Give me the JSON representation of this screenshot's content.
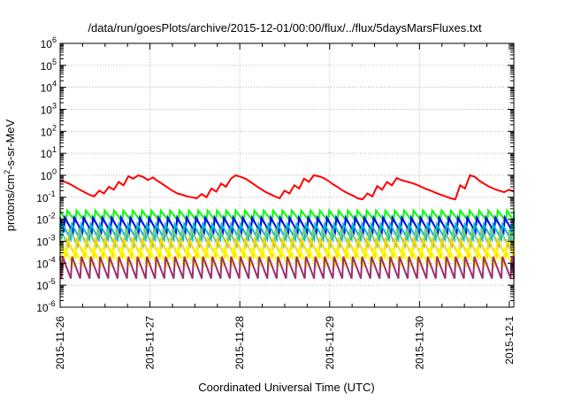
{
  "chart_data": {
    "type": "line",
    "title": "/data/run/goesPlots/archive/2015-12-01/00:00/flux/../flux/5daysMarsFluxes.txt",
    "xlabel": "Coordinated Universal Time (UTC)",
    "ylabel_main": "protons/cm",
    "ylabel_sup": "2",
    "ylabel_tail": "-s-sr-MeV",
    "y_scale": "log",
    "ylim_exponents": [
      -6,
      6
    ],
    "y_base_label": "10",
    "y_tick_exponents": [
      "-6",
      "-5",
      "-4",
      "-3",
      "-2",
      "-1",
      "0",
      "1",
      "2",
      "3",
      "4",
      "5",
      "6"
    ],
    "x_ticks": [
      "2015-11-26",
      "2015-11-27",
      "2015-11-28",
      "2015-11-29",
      "2015-11-30",
      "2015-12-1"
    ],
    "x_range_days": [
      0,
      5.05
    ],
    "grid": true,
    "legend": "none",
    "series": [
      {
        "color": "#ff0000",
        "sawtooth": false,
        "values": [
          0.55,
          0.5,
          0.4,
          0.3,
          0.22,
          0.17,
          0.13,
          0.11,
          0.2,
          0.15,
          0.3,
          0.22,
          0.5,
          0.35,
          0.9,
          0.7,
          1.0,
          0.85,
          0.6,
          0.8,
          0.55,
          0.4,
          0.28,
          0.2,
          0.15,
          0.13,
          0.11,
          0.1,
          0.09,
          0.14,
          0.1,
          0.25,
          0.18,
          0.42,
          0.3,
          0.7,
          1.0,
          0.85,
          0.7,
          0.5,
          0.35,
          0.25,
          0.18,
          0.14,
          0.11,
          0.09,
          0.2,
          0.15,
          0.35,
          0.25,
          0.7,
          0.5,
          1.0,
          0.9,
          0.75,
          0.55,
          0.38,
          0.28,
          0.2,
          0.15,
          0.12,
          0.09,
          0.08,
          0.15,
          0.11,
          0.32,
          0.22,
          0.5,
          0.35,
          0.75,
          0.6,
          0.52,
          0.45,
          0.38,
          0.3,
          0.24,
          0.2,
          0.16,
          0.13,
          0.11,
          0.09,
          0.08,
          0.35,
          0.25,
          1.0,
          0.85,
          0.55,
          0.4,
          0.3,
          0.24,
          0.2,
          0.17,
          0.22,
          0.18
        ]
      },
      {
        "color": "#00ff00",
        "sawtooth": true,
        "period_hours": 2.5,
        "peak": 0.025,
        "trough": 0.008
      },
      {
        "color": "#0000ff",
        "sawtooth": true,
        "period_hours": 2.5,
        "peak": 0.012,
        "trough": 0.0025
      },
      {
        "color": "#00c0c0",
        "sawtooth": true,
        "period_hours": 2.5,
        "peak": 0.006,
        "trough": 0.0012
      },
      {
        "color": "#7dc87d",
        "sawtooth": true,
        "period_hours": 2.5,
        "peak": 0.0035,
        "trough": 0.0006
      },
      {
        "color": "#ffd700",
        "sawtooth": true,
        "period_hours": 2.5,
        "peak": 0.0012,
        "trough": 0.0002
      },
      {
        "color": "#ffff00",
        "sawtooth": true,
        "period_hours": 2.5,
        "peak": 0.0005,
        "trough": 7e-05
      },
      {
        "color": "#9b3070",
        "sawtooth": true,
        "period_hours": 2.5,
        "peak": 0.0002,
        "trough": 2e-05
      }
    ]
  }
}
